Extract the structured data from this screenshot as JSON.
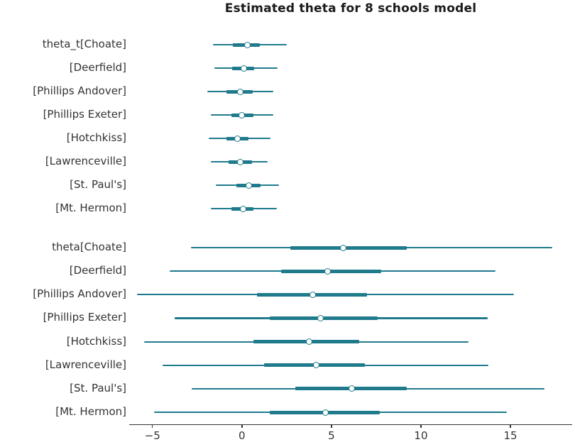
{
  "title": "Estimated theta for 8 schools model",
  "colors": {
    "line": "#1F7A8C",
    "marker_fill": "#FFFFFF",
    "marker_edge": "#1F7A8C",
    "axis": "#333333",
    "text": "#333333",
    "title_text": "#1A1A1A",
    "background": "#FFFFFF"
  },
  "chart_data": {
    "type": "forest",
    "title": "Estimated theta for 8 schools model",
    "xlabel": "",
    "ylabel": "",
    "legend": "none",
    "grid": "off",
    "x_ticks": [
      -5,
      0,
      5,
      10,
      15
    ],
    "x_tick_labels": [
      "−5",
      "0",
      "5",
      "10",
      "15"
    ],
    "x_range": [
      -6.3,
      18.45
    ],
    "interval_note": "thin line = wide credible interval, thick line = inner quartile interval, circle = median",
    "groups": [
      {
        "name": "theta_t",
        "rows": [
          {
            "label": "theta_t[Choate]",
            "lo": -1.6,
            "q1": -0.5,
            "median": 0.3,
            "q3": 1.0,
            "hi": 2.5
          },
          {
            "label": "[Deerfield]",
            "lo": -1.55,
            "q1": -0.55,
            "median": 0.1,
            "q3": 0.7,
            "hi": 2.0
          },
          {
            "label": "[Phillips Andover]",
            "lo": -1.95,
            "q1": -0.85,
            "median": -0.1,
            "q3": 0.6,
            "hi": 1.75
          },
          {
            "label": "[Phillips Exeter]",
            "lo": -1.75,
            "q1": -0.6,
            "median": 0.0,
            "q3": 0.65,
            "hi": 1.75
          },
          {
            "label": "[Hotchkiss]",
            "lo": -1.85,
            "q1": -0.85,
            "median": -0.25,
            "q3": 0.35,
            "hi": 1.6
          },
          {
            "label": "[Lawrenceville]",
            "lo": -1.75,
            "q1": -0.75,
            "median": -0.1,
            "q3": 0.55,
            "hi": 1.45
          },
          {
            "label": "[St. Paul's]",
            "lo": -1.45,
            "q1": -0.3,
            "median": 0.4,
            "q3": 1.05,
            "hi": 2.05
          },
          {
            "label": "[Mt. Hermon]",
            "lo": -1.75,
            "q1": -0.6,
            "median": 0.05,
            "q3": 0.65,
            "hi": 1.95
          }
        ]
      },
      {
        "name": "theta",
        "rows": [
          {
            "label": "theta[Choate]",
            "lo": -2.85,
            "q1": 2.7,
            "median": 5.65,
            "q3": 9.2,
            "hi": 17.35
          },
          {
            "label": "[Deerfield]",
            "lo": -4.05,
            "q1": 2.2,
            "median": 4.8,
            "q3": 7.8,
            "hi": 14.15
          },
          {
            "label": "[Phillips Andover]",
            "lo": -5.85,
            "q1": 0.85,
            "median": 3.95,
            "q3": 7.0,
            "hi": 15.2
          },
          {
            "label": "[Phillips Exeter]",
            "lo": -3.75,
            "q1": 1.55,
            "median": 4.4,
            "q3": 7.6,
            "hi": 13.75
          },
          {
            "label": "[Hotchkiss]",
            "lo": -5.45,
            "q1": 0.65,
            "median": 3.75,
            "q3": 6.55,
            "hi": 12.65
          },
          {
            "label": "[Lawrenceville]",
            "lo": -4.45,
            "q1": 1.25,
            "median": 4.15,
            "q3": 6.85,
            "hi": 13.75
          },
          {
            "label": "[St. Paul's]",
            "lo": -2.8,
            "q1": 3.0,
            "median": 6.15,
            "q3": 9.2,
            "hi": 16.9
          },
          {
            "label": "[Mt. Hermon]",
            "lo": -4.9,
            "q1": 1.55,
            "median": 4.65,
            "q3": 7.7,
            "hi": 14.8
          }
        ]
      }
    ]
  }
}
